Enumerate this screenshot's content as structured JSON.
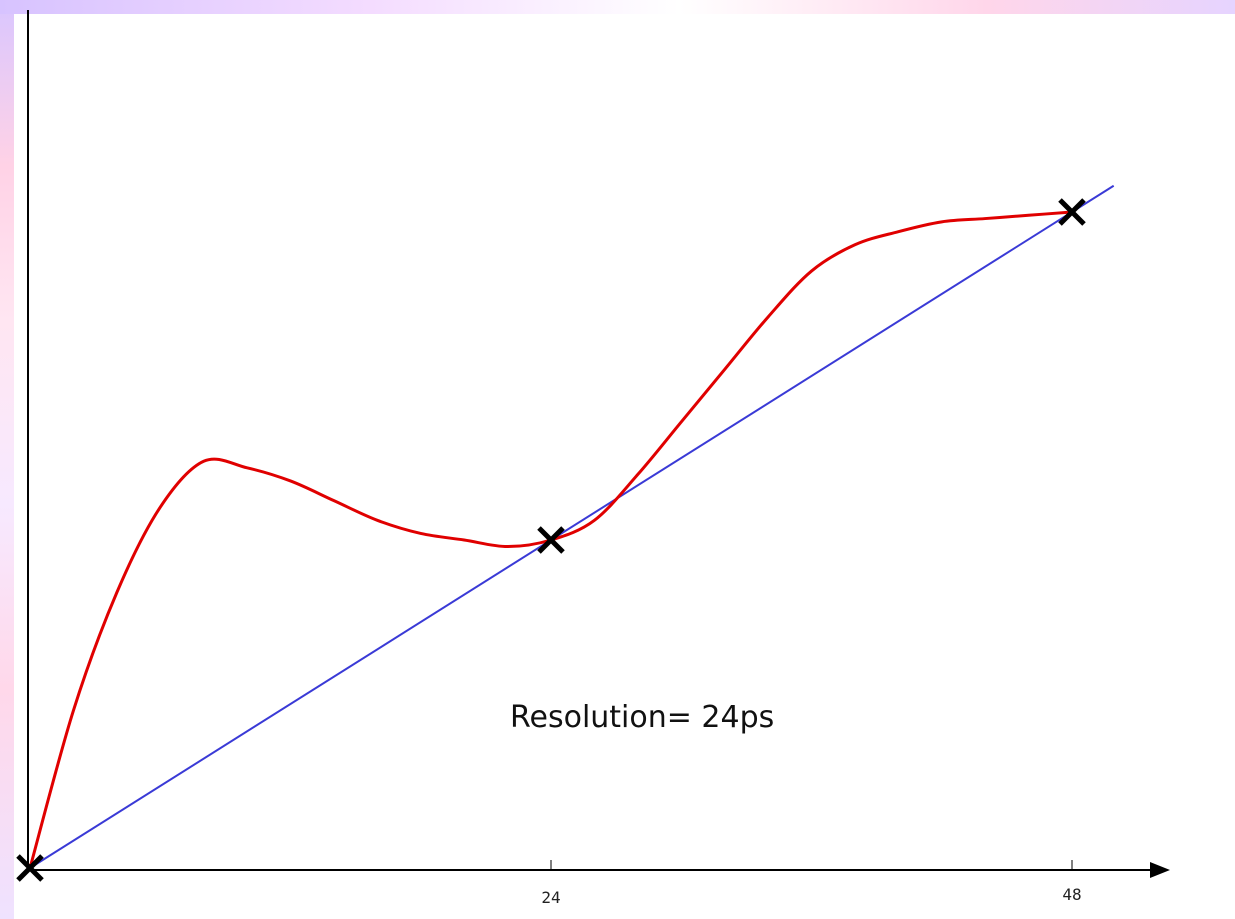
{
  "chart_data": {
    "type": "line",
    "x_ticks": [
      24,
      48
    ],
    "xlim": [
      0,
      48
    ],
    "ylim": [
      0,
      1
    ],
    "annotation": "Resolution= 24ps",
    "grid": false,
    "legend": "none",
    "series": [
      {
        "style": "straight",
        "color": "#3a3ad6",
        "x": [
          0,
          48
        ],
        "y": [
          0,
          1
        ]
      },
      {
        "style": "curve",
        "color": "#e00000",
        "x": [
          0,
          2,
          4,
          6,
          8,
          10,
          12,
          14,
          16,
          18,
          20,
          22,
          24,
          26,
          28,
          30,
          32,
          34,
          36,
          38,
          40,
          42,
          44,
          46,
          48
        ],
        "y": [
          0,
          0.24,
          0.42,
          0.55,
          0.62,
          0.61,
          0.59,
          0.56,
          0.53,
          0.51,
          0.5,
          0.49,
          0.5,
          0.53,
          0.6,
          0.68,
          0.76,
          0.84,
          0.91,
          0.95,
          0.97,
          0.985,
          0.99,
          0.995,
          1
        ]
      }
    ],
    "markers": [
      {
        "x": 0,
        "y": 0
      },
      {
        "x": 24,
        "y": 0.5
      },
      {
        "x": 48,
        "y": 1
      }
    ]
  }
}
